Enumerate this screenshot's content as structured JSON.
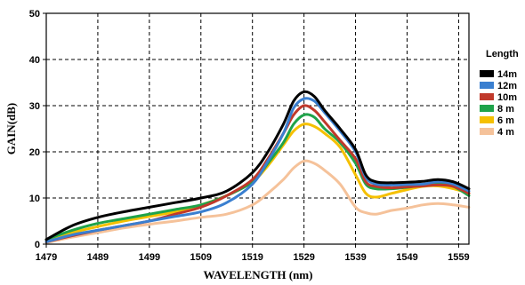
{
  "chart_data": {
    "type": "line",
    "xlabel": "WAVELENGTH (nm)",
    "ylabel": "GAIN(dB)",
    "xlim": [
      1479,
      1561
    ],
    "ylim": [
      0,
      50
    ],
    "x_ticks": [
      1479,
      1489,
      1499,
      1509,
      1519,
      1529,
      1539,
      1549,
      1559
    ],
    "y_ticks": [
      0,
      10,
      20,
      30,
      40,
      50
    ],
    "grid": true,
    "legend_title": "Length",
    "legend_position": "right",
    "series": [
      {
        "name": "14m",
        "color": "#000000",
        "x": [
          1479,
          1484,
          1489,
          1494,
          1499,
          1504,
          1509,
          1514,
          1519,
          1522,
          1525,
          1527,
          1529,
          1531,
          1533,
          1536,
          1539,
          1541,
          1543,
          1546,
          1549,
          1552,
          1555,
          1558,
          1561
        ],
        "y": [
          1,
          4,
          5.8,
          7,
          8,
          9,
          10,
          11.5,
          15.5,
          20,
          26,
          31,
          33,
          32,
          29,
          25,
          20.5,
          15,
          13.5,
          13.3,
          13.4,
          13.6,
          14,
          13.5,
          12
        ]
      },
      {
        "name": "12m",
        "color": "#3a7fd0",
        "x": [
          1479,
          1484,
          1489,
          1494,
          1499,
          1504,
          1509,
          1514,
          1519,
          1522,
          1525,
          1527,
          1529,
          1531,
          1533,
          1536,
          1539,
          1541,
          1543,
          1546,
          1549,
          1552,
          1555,
          1558,
          1561
        ],
        "y": [
          0.5,
          2,
          3,
          4,
          5,
          6,
          7,
          9,
          13,
          18,
          24,
          29.5,
          31.5,
          31,
          28.5,
          24.5,
          20,
          14.5,
          13,
          12.8,
          12.9,
          13,
          13.5,
          13,
          11.5
        ]
      },
      {
        "name": "10m",
        "color": "#c0392b",
        "x": [
          1479,
          1484,
          1489,
          1494,
          1499,
          1504,
          1509,
          1514,
          1519,
          1522,
          1525,
          1527,
          1529,
          1531,
          1533,
          1536,
          1539,
          1541,
          1543,
          1546,
          1549,
          1552,
          1555,
          1558,
          1561
        ],
        "y": [
          0.5,
          1.8,
          3,
          4,
          5,
          6.5,
          8,
          10.5,
          14,
          18.5,
          24,
          28,
          30,
          29,
          26.5,
          22.5,
          18.5,
          13.5,
          12.5,
          12.2,
          12.4,
          12.6,
          12.8,
          12.5,
          11
        ]
      },
      {
        "name": "8 m",
        "color": "#1fa34a",
        "x": [
          1479,
          1484,
          1489,
          1494,
          1499,
          1504,
          1509,
          1514,
          1519,
          1522,
          1525,
          1527,
          1529,
          1531,
          1533,
          1536,
          1539,
          1541,
          1543,
          1546,
          1549,
          1552,
          1555,
          1558,
          1561
        ],
        "y": [
          1,
          3,
          4.5,
          5.5,
          6.5,
          7.5,
          8.5,
          10.5,
          13.5,
          17.5,
          22,
          26,
          28,
          27.5,
          25,
          22,
          17.5,
          13,
          12,
          12,
          12.3,
          12.8,
          13.3,
          12.5,
          10.5
        ]
      },
      {
        "name": "6 m",
        "color": "#f5c000",
        "x": [
          1479,
          1484,
          1489,
          1494,
          1499,
          1504,
          1509,
          1514,
          1519,
          1522,
          1525,
          1527,
          1529,
          1531,
          1533,
          1536,
          1539,
          1541,
          1543,
          1546,
          1549,
          1552,
          1555,
          1558,
          1561
        ],
        "y": [
          1,
          2.5,
          3.8,
          5,
          6,
          7,
          8.5,
          10.5,
          13.5,
          17,
          21.5,
          24.5,
          26,
          25.5,
          24,
          21,
          15,
          11,
          10.2,
          11,
          11.8,
          12.5,
          12.6,
          12,
          11
        ]
      },
      {
        "name": "4 m",
        "color": "#f5c29a",
        "x": [
          1479,
          1484,
          1489,
          1494,
          1499,
          1504,
          1509,
          1514,
          1519,
          1522,
          1525,
          1527,
          1529,
          1531,
          1533,
          1536,
          1539,
          1541,
          1543,
          1546,
          1549,
          1552,
          1555,
          1558,
          1561
        ],
        "y": [
          0.3,
          1.5,
          2.5,
          3.5,
          4.3,
          5,
          5.8,
          6.5,
          8.5,
          11,
          14,
          16.5,
          18,
          17.5,
          16,
          13,
          8,
          6.8,
          6.5,
          7.3,
          7.8,
          8.5,
          8.8,
          8.5,
          8
        ]
      }
    ]
  }
}
